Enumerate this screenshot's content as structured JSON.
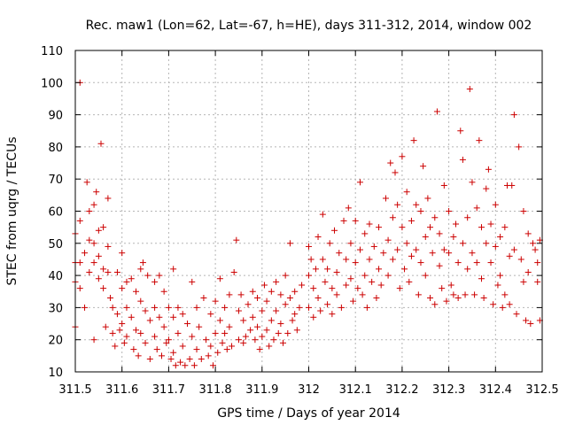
{
  "chart_data": {
    "type": "scatter",
    "title": "Rec. maw1 (Lon=62, Lat=-67, h=HE), days 311-312, 2014, window 002",
    "xlabel": "GPS time / Days of year 2014",
    "ylabel": "STEC from uqrg / TECUs",
    "xlim": [
      311.5,
      312.5
    ],
    "ylim": [
      10,
      110
    ],
    "x_ticks": [
      311.5,
      311.6,
      311.7,
      311.8,
      311.9,
      312.0,
      312.1,
      312.2,
      312.3,
      312.4,
      312.5
    ],
    "x_tick_labels": [
      "311.5",
      "311.6",
      "311.7",
      "311.8",
      "311.9",
      "312",
      "312.1",
      "312.2",
      "312.3",
      "312.4",
      "312.5"
    ],
    "y_ticks": [
      10,
      20,
      30,
      40,
      50,
      60,
      70,
      80,
      90,
      100,
      110
    ],
    "y_tick_labels": [
      "10",
      "20",
      "30",
      "40",
      "50",
      "60",
      "70",
      "80",
      "90",
      "100",
      "110"
    ],
    "grid": true,
    "marker": "plus",
    "color": "#cc0000",
    "series": [
      {
        "points": [
          [
            311.5,
            53
          ],
          [
            311.5,
            44
          ],
          [
            311.5,
            38
          ],
          [
            311.5,
            24
          ],
          [
            311.51,
            100
          ],
          [
            311.51,
            57
          ],
          [
            311.51,
            44
          ],
          [
            311.51,
            36
          ],
          [
            311.52,
            47
          ],
          [
            311.52,
            30
          ],
          [
            311.525,
            69
          ],
          [
            311.53,
            60
          ],
          [
            311.53,
            51
          ],
          [
            311.53,
            41
          ],
          [
            311.54,
            62
          ],
          [
            311.54,
            50
          ],
          [
            311.54,
            44
          ],
          [
            311.54,
            20
          ],
          [
            311.545,
            66
          ],
          [
            311.55,
            54
          ],
          [
            311.55,
            46
          ],
          [
            311.55,
            39
          ],
          [
            311.555,
            81
          ],
          [
            311.56,
            55
          ],
          [
            311.56,
            42
          ],
          [
            311.56,
            36
          ],
          [
            311.565,
            24
          ],
          [
            311.57,
            64
          ],
          [
            311.57,
            49
          ],
          [
            311.57,
            41
          ],
          [
            311.575,
            33
          ],
          [
            311.58,
            30
          ],
          [
            311.58,
            22
          ],
          [
            311.585,
            18
          ],
          [
            311.59,
            41
          ],
          [
            311.59,
            28
          ],
          [
            311.595,
            23
          ],
          [
            311.6,
            47
          ],
          [
            311.6,
            36
          ],
          [
            311.6,
            25
          ],
          [
            311.605,
            19
          ],
          [
            311.61,
            38
          ],
          [
            311.61,
            30
          ],
          [
            311.61,
            21
          ],
          [
            311.62,
            39
          ],
          [
            311.62,
            27
          ],
          [
            311.625,
            17
          ],
          [
            311.63,
            35
          ],
          [
            311.63,
            23
          ],
          [
            311.635,
            15
          ],
          [
            311.64,
            42
          ],
          [
            311.64,
            32
          ],
          [
            311.64,
            22
          ],
          [
            311.645,
            44
          ],
          [
            311.65,
            29
          ],
          [
            311.65,
            19
          ],
          [
            311.655,
            40
          ],
          [
            311.66,
            26
          ],
          [
            311.66,
            14
          ],
          [
            311.67,
            38
          ],
          [
            311.67,
            30
          ],
          [
            311.67,
            21
          ],
          [
            311.675,
            17
          ],
          [
            311.68,
            40
          ],
          [
            311.68,
            27
          ],
          [
            311.685,
            15
          ],
          [
            311.69,
            35
          ],
          [
            311.69,
            24
          ],
          [
            311.695,
            19
          ],
          [
            311.7,
            30
          ],
          [
            311.7,
            20
          ],
          [
            311.705,
            14
          ],
          [
            311.71,
            42
          ],
          [
            311.71,
            27
          ],
          [
            311.71,
            16
          ],
          [
            311.715,
            12
          ],
          [
            311.72,
            30
          ],
          [
            311.72,
            22
          ],
          [
            311.725,
            13
          ],
          [
            311.73,
            28
          ],
          [
            311.73,
            18
          ],
          [
            311.735,
            12
          ],
          [
            311.74,
            25
          ],
          [
            311.745,
            14
          ],
          [
            311.75,
            38
          ],
          [
            311.75,
            21
          ],
          [
            311.755,
            12
          ],
          [
            311.76,
            30
          ],
          [
            311.76,
            17
          ],
          [
            311.765,
            24
          ],
          [
            311.77,
            14
          ],
          [
            311.775,
            33
          ],
          [
            311.78,
            20
          ],
          [
            311.785,
            15
          ],
          [
            311.79,
            28
          ],
          [
            311.79,
            18
          ],
          [
            311.795,
            12
          ],
          [
            311.8,
            32
          ],
          [
            311.8,
            22
          ],
          [
            311.805,
            16
          ],
          [
            311.81,
            39
          ],
          [
            311.81,
            26
          ],
          [
            311.815,
            19
          ],
          [
            311.82,
            30
          ],
          [
            311.82,
            22
          ],
          [
            311.825,
            17
          ],
          [
            311.83,
            34
          ],
          [
            311.83,
            24
          ],
          [
            311.835,
            18
          ],
          [
            311.84,
            41
          ],
          [
            311.845,
            51
          ],
          [
            311.85,
            29
          ],
          [
            311.85,
            20
          ],
          [
            311.855,
            34
          ],
          [
            311.86,
            26
          ],
          [
            311.86,
            19
          ],
          [
            311.865,
            21
          ],
          [
            311.87,
            31
          ],
          [
            311.875,
            23
          ],
          [
            311.88,
            35
          ],
          [
            311.88,
            27
          ],
          [
            311.885,
            20
          ],
          [
            311.89,
            33
          ],
          [
            311.89,
            24
          ],
          [
            311.895,
            17
          ],
          [
            311.9,
            29
          ],
          [
            311.9,
            21
          ],
          [
            311.905,
            37
          ],
          [
            311.91,
            32
          ],
          [
            311.91,
            23
          ],
          [
            311.915,
            18
          ],
          [
            311.92,
            35
          ],
          [
            311.92,
            26
          ],
          [
            311.925,
            20
          ],
          [
            311.93,
            38
          ],
          [
            311.93,
            29
          ],
          [
            311.935,
            22
          ],
          [
            311.94,
            34
          ],
          [
            311.94,
            25
          ],
          [
            311.945,
            19
          ],
          [
            311.95,
            31
          ],
          [
            311.95,
            40
          ],
          [
            311.955,
            22
          ],
          [
            311.96,
            50
          ],
          [
            311.96,
            33
          ],
          [
            311.965,
            26
          ],
          [
            311.97,
            35
          ],
          [
            311.97,
            28
          ],
          [
            311.975,
            23
          ],
          [
            311.98,
            30
          ],
          [
            311.985,
            37
          ],
          [
            312.0,
            49
          ],
          [
            312.0,
            40
          ],
          [
            312.0,
            30
          ],
          [
            312.005,
            45
          ],
          [
            312.01,
            36
          ],
          [
            312.01,
            27
          ],
          [
            312.015,
            42
          ],
          [
            312.02,
            52
          ],
          [
            312.02,
            33
          ],
          [
            312.025,
            29
          ],
          [
            312.03,
            59
          ],
          [
            312.03,
            45
          ],
          [
            312.035,
            38
          ],
          [
            312.04,
            42
          ],
          [
            312.04,
            31
          ],
          [
            312.045,
            50
          ],
          [
            312.05,
            36
          ],
          [
            312.05,
            28
          ],
          [
            312.055,
            54
          ],
          [
            312.06,
            41
          ],
          [
            312.06,
            34
          ],
          [
            312.065,
            47
          ],
          [
            312.07,
            30
          ],
          [
            312.075,
            57
          ],
          [
            312.08,
            45
          ],
          [
            312.08,
            37
          ],
          [
            312.085,
            61
          ],
          [
            312.09,
            50
          ],
          [
            312.09,
            39
          ],
          [
            312.095,
            32
          ],
          [
            312.1,
            57
          ],
          [
            312.1,
            44
          ],
          [
            312.105,
            36
          ],
          [
            312.11,
            69
          ],
          [
            312.11,
            48
          ],
          [
            312.115,
            34
          ],
          [
            312.12,
            53
          ],
          [
            312.12,
            40
          ],
          [
            312.125,
            30
          ],
          [
            312.13,
            56
          ],
          [
            312.13,
            45
          ],
          [
            312.135,
            38
          ],
          [
            312.14,
            49
          ],
          [
            312.145,
            33
          ],
          [
            312.15,
            55
          ],
          [
            312.15,
            42
          ],
          [
            312.155,
            37
          ],
          [
            312.16,
            47
          ],
          [
            312.165,
            64
          ],
          [
            312.17,
            51
          ],
          [
            312.17,
            40
          ],
          [
            312.175,
            75
          ],
          [
            312.18,
            58
          ],
          [
            312.18,
            45
          ],
          [
            312.185,
            72
          ],
          [
            312.19,
            62
          ],
          [
            312.19,
            48
          ],
          [
            312.195,
            36
          ],
          [
            312.2,
            77
          ],
          [
            312.2,
            55
          ],
          [
            312.205,
            42
          ],
          [
            312.21,
            66
          ],
          [
            312.21,
            50
          ],
          [
            312.215,
            38
          ],
          [
            312.22,
            57
          ],
          [
            312.22,
            46
          ],
          [
            312.225,
            82
          ],
          [
            312.23,
            62
          ],
          [
            312.23,
            48
          ],
          [
            312.235,
            34
          ],
          [
            312.24,
            60
          ],
          [
            312.24,
            44
          ],
          [
            312.245,
            74
          ],
          [
            312.25,
            52
          ],
          [
            312.25,
            40
          ],
          [
            312.255,
            64
          ],
          [
            312.26,
            55
          ],
          [
            312.26,
            33
          ],
          [
            312.265,
            47
          ],
          [
            312.27,
            58
          ],
          [
            312.27,
            31
          ],
          [
            312.275,
            91
          ],
          [
            312.28,
            53
          ],
          [
            312.28,
            43
          ],
          [
            312.285,
            36
          ],
          [
            312.29,
            68
          ],
          [
            312.29,
            48
          ],
          [
            312.295,
            32
          ],
          [
            312.3,
            60
          ],
          [
            312.3,
            47
          ],
          [
            312.305,
            37
          ],
          [
            312.31,
            52
          ],
          [
            312.31,
            34
          ],
          [
            312.315,
            56
          ],
          [
            312.32,
            44
          ],
          [
            312.32,
            33
          ],
          [
            312.325,
            85
          ],
          [
            312.33,
            76
          ],
          [
            312.33,
            50
          ],
          [
            312.335,
            34
          ],
          [
            312.34,
            58
          ],
          [
            312.34,
            42
          ],
          [
            312.345,
            98
          ],
          [
            312.35,
            69
          ],
          [
            312.35,
            47
          ],
          [
            312.355,
            34
          ],
          [
            312.36,
            61
          ],
          [
            312.36,
            44
          ],
          [
            312.365,
            82
          ],
          [
            312.37,
            55
          ],
          [
            312.37,
            39
          ],
          [
            312.375,
            33
          ],
          [
            312.38,
            67
          ],
          [
            312.38,
            50
          ],
          [
            312.385,
            73
          ],
          [
            312.39,
            56
          ],
          [
            312.39,
            44
          ],
          [
            312.395,
            31
          ],
          [
            312.4,
            62
          ],
          [
            312.4,
            49
          ],
          [
            312.405,
            37
          ],
          [
            312.41,
            52
          ],
          [
            312.41,
            40
          ],
          [
            312.415,
            30
          ],
          [
            312.42,
            55
          ],
          [
            312.42,
            34
          ],
          [
            312.425,
            68
          ],
          [
            312.43,
            46
          ],
          [
            312.43,
            31
          ],
          [
            312.435,
            68
          ],
          [
            312.44,
            90
          ],
          [
            312.44,
            48
          ],
          [
            312.445,
            28
          ],
          [
            312.45,
            80
          ],
          [
            312.455,
            45
          ],
          [
            312.46,
            60
          ],
          [
            312.46,
            38
          ],
          [
            312.465,
            26
          ],
          [
            312.47,
            53
          ],
          [
            312.47,
            41
          ],
          [
            312.475,
            25
          ],
          [
            312.48,
            50
          ],
          [
            312.485,
            48
          ],
          [
            312.49,
            44
          ],
          [
            312.49,
            38
          ],
          [
            312.495,
            51
          ],
          [
            312.495,
            26
          ]
        ]
      }
    ]
  }
}
